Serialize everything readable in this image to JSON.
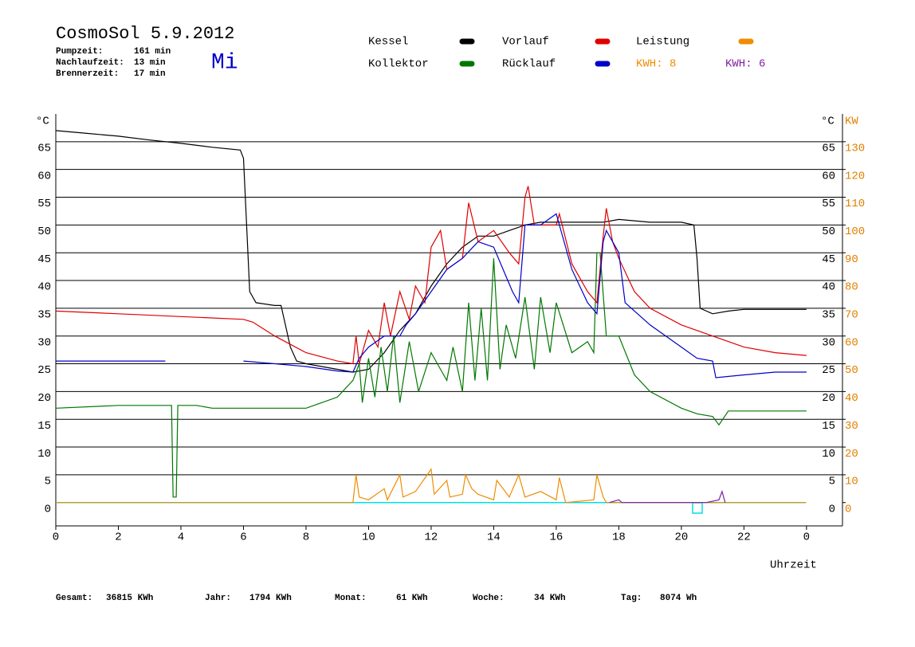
{
  "chart_data": {
    "type": "line",
    "title": "CosmoSol 5.9.2012",
    "weekday": "Mi",
    "runtimes": [
      [
        "Pumpzeit:",
        "161 min"
      ],
      [
        "Nachlaufzeit:",
        "13 min"
      ],
      [
        "Brennerzeit:",
        "17 min"
      ]
    ],
    "y_unit": "°C",
    "y2_unit": "KW",
    "x_label": "Uhrzeit",
    "kwh_labels": [
      {
        "text": "KWH: 8",
        "color": "#f08c00"
      },
      {
        "text": "KWH: 6",
        "color": "#8020a0"
      }
    ],
    "totals": [
      [
        "Gesamt:",
        "36815 KWh"
      ],
      [
        "Jahr:",
        "1794 KWh"
      ],
      [
        "Monat:",
        "61 KWh"
      ],
      [
        "Woche:",
        "34 KWh"
      ],
      [
        "Tag:",
        "8074 Wh"
      ]
    ],
    "xlim": [
      0,
      25.15
    ],
    "xticks": [
      0,
      2,
      4,
      6,
      8,
      10,
      12,
      14,
      16,
      18,
      20,
      22,
      {
        "value": 24,
        "label": "0"
      }
    ],
    "ylim": [
      -4.2,
      70
    ],
    "yticks": [
      0,
      5,
      10,
      15,
      20,
      25,
      30,
      35,
      40,
      45,
      50,
      55,
      60,
      65
    ],
    "y2lim": [
      -8.4,
      140
    ],
    "y2ticks": [
      0,
      10,
      20,
      30,
      40,
      50,
      60,
      70,
      80,
      90,
      100,
      110,
      120,
      130
    ],
    "grid": true,
    "grid_color": "#000000",
    "zero_line_color": "#00e0e0",
    "series": [
      {
        "name": "Kessel",
        "color": "#000000",
        "x": [
          0,
          1,
          2,
          3,
          4,
          5,
          5.9,
          6,
          6.1,
          6.2,
          6.4,
          7,
          7.2,
          7.3,
          7.5,
          7.7,
          8,
          8.5,
          9,
          9.5,
          10,
          10.5,
          11,
          11.5,
          12,
          12.5,
          13,
          13.5,
          14,
          14.5,
          15,
          15.5,
          16,
          17,
          17.5,
          18,
          19,
          20,
          20.4,
          20.5,
          20.6,
          21,
          21.5,
          22,
          23,
          24
        ],
        "values": [
          67,
          66.5,
          66,
          65.3,
          64.7,
          64,
          63.5,
          62,
          50,
          38,
          36,
          35.5,
          35.5,
          33,
          28,
          25.5,
          25,
          24.5,
          24,
          23.5,
          24,
          27,
          31,
          34,
          39,
          43,
          46,
          48,
          48,
          49,
          50,
          50.5,
          50.5,
          50.5,
          50.5,
          51,
          50.5,
          50.5,
          50,
          44,
          35,
          34,
          34.5,
          34.8,
          34.8,
          34.8
        ]
      },
      {
        "name": "Kollektor",
        "color": "#007800",
        "x": [
          0,
          2,
          3,
          3.7,
          3.75,
          3.85,
          3.9,
          4.5,
          5,
          6,
          7,
          8,
          9,
          9.5,
          9.7,
          9.8,
          10,
          10.2,
          10.4,
          10.6,
          10.8,
          11,
          11.3,
          11.6,
          12,
          12.3,
          12.5,
          12.7,
          13,
          13.2,
          13.4,
          13.6,
          13.8,
          14,
          14.2,
          14.4,
          14.7,
          15,
          15.3,
          15.5,
          15.8,
          16,
          16.5,
          17,
          17.2,
          17.3,
          17.4,
          17.6,
          18,
          18.5,
          19,
          20,
          20.5,
          21,
          21.2,
          21.5,
          22,
          23,
          24
        ],
        "values": [
          17,
          17.5,
          17.5,
          17.5,
          1,
          1,
          17.5,
          17.5,
          17,
          17,
          17,
          17,
          19,
          22,
          25,
          18,
          26,
          19,
          28,
          20,
          30,
          18,
          29,
          20,
          27,
          24,
          22,
          28,
          20,
          36,
          22,
          35,
          22,
          44,
          24,
          32,
          26,
          37,
          24,
          37,
          27,
          36,
          27,
          29,
          27,
          45,
          45,
          30,
          30,
          23,
          20,
          17,
          16,
          15.5,
          14,
          16.5,
          16.5,
          16.5,
          16.5
        ]
      },
      {
        "name": "Vorlauf",
        "color": "#e00000",
        "x": [
          0,
          2,
          4,
          6,
          6.3,
          7,
          8,
          9,
          9.5,
          9.6,
          9.7,
          10,
          10.3,
          10.5,
          10.7,
          11,
          11.3,
          11.5,
          11.8,
          12,
          12.3,
          12.5,
          13,
          13.2,
          13.5,
          14,
          14.5,
          14.8,
          15,
          15.1,
          15.3,
          16,
          16.1,
          16.5,
          17,
          17.3,
          17.5,
          17.6,
          17.8,
          18,
          18.5,
          19,
          20,
          21,
          22,
          23,
          24
        ],
        "values": [
          34.5,
          34,
          33.5,
          33,
          32.5,
          30,
          27,
          25.5,
          25,
          30,
          25,
          31,
          28,
          36,
          30,
          38,
          33,
          39,
          36,
          46,
          49,
          42,
          44,
          54,
          47,
          49,
          45,
          43,
          55,
          57,
          50,
          50,
          52,
          43,
          38,
          36,
          48,
          53,
          47,
          44,
          38,
          35,
          32,
          30,
          28,
          27,
          26.5
        ]
      },
      {
        "name": "Rücklauf",
        "color": "#0000c8",
        "x": [
          0,
          3.5,
          4,
          6,
          7,
          8,
          9,
          9.5,
          9.7,
          10,
          10.5,
          11,
          11.2,
          11.5,
          12,
          12.5,
          13,
          13.5,
          14,
          14.6,
          14.8,
          15,
          15.5,
          16,
          16.5,
          17,
          17.3,
          17.5,
          17.6,
          18,
          18.2,
          19,
          20,
          20.5,
          21,
          21.1,
          22,
          23,
          24
        ],
        "values": [
          25.5,
          25.5,
          null,
          25.5,
          25,
          24.5,
          23.7,
          23.5,
          26,
          28,
          30,
          30,
          32,
          34,
          38,
          42,
          44,
          47,
          46,
          38,
          36,
          50,
          50,
          52,
          42,
          36,
          34,
          47,
          49,
          45,
          36,
          32,
          28,
          26,
          25.5,
          22.5,
          23,
          23.5,
          23.5
        ]
      },
      {
        "name": "Leistung",
        "color": "#f08c00",
        "axis": "y2",
        "x": [
          0,
          9.5,
          9.6,
          9.7,
          10,
          10.5,
          10.6,
          11,
          11.1,
          11.5,
          12,
          12.1,
          12.5,
          12.6,
          13,
          13.1,
          13.3,
          13.5,
          14,
          14.1,
          14.5,
          14.8,
          15,
          15.5,
          16,
          16.1,
          16.3,
          17.2,
          17.3,
          17.5,
          17.6,
          24
        ],
        "values": [
          0,
          0,
          10,
          2,
          1,
          5,
          1,
          10,
          2,
          4,
          12,
          3,
          8,
          2,
          3,
          10,
          5,
          3,
          1,
          8,
          2,
          10,
          2,
          4,
          1,
          9,
          0,
          1,
          10,
          2,
          0,
          0
        ]
      },
      {
        "color": "#8020a0",
        "axis": "y2",
        "x": [
          17.7,
          18,
          18.1,
          20.8,
          21.2,
          21.3,
          21.4
        ],
        "values": [
          0,
          1,
          0,
          0,
          1,
          4,
          0
        ]
      }
    ]
  }
}
